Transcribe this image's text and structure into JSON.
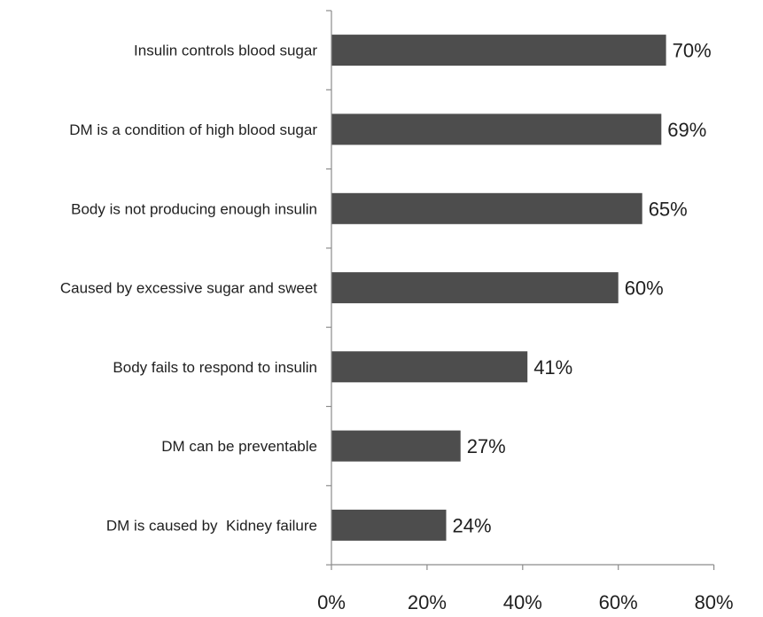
{
  "chart_data": {
    "type": "bar",
    "orientation": "horizontal",
    "categories": [
      "Insulin controls blood sugar",
      "DM is a condition of high blood sugar",
      "Body is not producing enough insulin",
      "Caused by excessive sugar and sweet",
      "Body fails to respond to insulin",
      "DM can be preventable",
      "DM is caused by  Kidney failure"
    ],
    "values": [
      70,
      69,
      65,
      60,
      41,
      27,
      24
    ],
    "value_labels": [
      "70%",
      "69%",
      "65%",
      "60%",
      "41%",
      "27%",
      "24%"
    ],
    "xlim": [
      0,
      80
    ],
    "x_ticks": [
      0,
      20,
      40,
      60,
      80
    ],
    "x_tick_labels": [
      "0%",
      "20%",
      "40%",
      "60%",
      "80%"
    ],
    "title": "",
    "xlabel": "",
    "ylabel": "",
    "grid": false,
    "legend": "none",
    "bar_color": "#4d4d4d"
  }
}
